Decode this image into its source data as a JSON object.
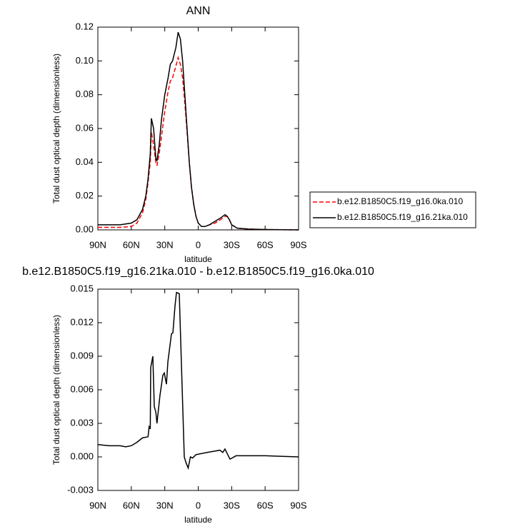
{
  "chart_data": [
    {
      "type": "line",
      "title": "ANN",
      "x_label": "latitude",
      "y_label": "Total dust optical depth (dimensionless)",
      "xlim": [
        90,
        -90
      ],
      "xticks": [
        {
          "value": 90,
          "label": "90N"
        },
        {
          "value": 60,
          "label": "60N"
        },
        {
          "value": 30,
          "label": "30N"
        },
        0,
        {
          "value": -30,
          "label": "30S"
        },
        {
          "value": -60,
          "label": "60S"
        },
        {
          "value": -90,
          "label": "90S"
        }
      ],
      "ylim": [
        0,
        0.12
      ],
      "yticks": [
        {
          "value": 0,
          "label": "0.00"
        },
        0.02,
        0.04,
        0.06,
        0.08,
        {
          "value": 0.1,
          "label": "0.10"
        },
        0.12
      ],
      "legend": "right",
      "x": [
        90,
        80,
        70,
        60,
        55,
        50,
        47,
        45,
        43,
        42,
        40,
        38,
        37,
        35,
        33,
        30,
        27,
        25,
        23,
        20,
        18,
        16,
        14,
        12,
        10,
        8,
        6,
        4,
        2,
        0,
        -3,
        -6,
        -10,
        -15,
        -20,
        -24,
        -26,
        -28,
        -30,
        -35,
        -45,
        -60,
        -90
      ],
      "series": [
        {
          "name": "b.e12.B1850C5.f19_g16.0ka.010",
          "color": "#ff0000",
          "line_style": "dashed",
          "values": [
            0.0015,
            0.0015,
            0.0015,
            0.002,
            0.004,
            0.01,
            0.018,
            0.028,
            0.04,
            0.058,
            0.05,
            0.04,
            0.038,
            0.045,
            0.055,
            0.07,
            0.082,
            0.088,
            0.09,
            0.097,
            0.102,
            0.098,
            0.09,
            0.075,
            0.058,
            0.04,
            0.025,
            0.015,
            0.008,
            0.004,
            0.002,
            0.002,
            0.003,
            0.004,
            0.006,
            0.008,
            0.008,
            0.006,
            0.003,
            0.001,
            0.0005,
            0.0002,
            0
          ]
        },
        {
          "name": "b.e12.B1850C5.f19_g16.21ka.010",
          "color": "#000000",
          "line_style": "solid",
          "values": [
            0.003,
            0.003,
            0.003,
            0.004,
            0.006,
            0.012,
            0.02,
            0.03,
            0.045,
            0.066,
            0.06,
            0.042,
            0.041,
            0.05,
            0.065,
            0.08,
            0.09,
            0.098,
            0.1,
            0.108,
            0.117,
            0.113,
            0.1,
            0.08,
            0.06,
            0.04,
            0.025,
            0.015,
            0.008,
            0.004,
            0.002,
            0.002,
            0.003,
            0.005,
            0.007,
            0.009,
            0.008,
            0.006,
            0.003,
            0.001,
            0.0005,
            0.0002,
            0
          ]
        }
      ]
    },
    {
      "type": "line",
      "title": "b.e12.B1850C5.f19_g16.21ka.010 - b.e12.B1850C5.f19_g16.0ka.010",
      "x_label": "latitude",
      "y_label": "Total dust optical depth (dimensionless)",
      "xlim": [
        90,
        -90
      ],
      "xticks": [
        {
          "value": 90,
          "label": "90N"
        },
        {
          "value": 60,
          "label": "60N"
        },
        {
          "value": 30,
          "label": "30N"
        },
        0,
        {
          "value": -30,
          "label": "30S"
        },
        {
          "value": -60,
          "label": "60S"
        },
        {
          "value": -90,
          "label": "90S"
        }
      ],
      "ylim": [
        -0.003,
        0.015
      ],
      "yticks": [
        -0.003,
        {
          "value": 0,
          "label": "0.000"
        },
        0.003,
        0.006,
        0.009,
        0.012,
        0.015
      ],
      "x": [
        90,
        80,
        75,
        70,
        65,
        60,
        55,
        50,
        45,
        44,
        43,
        42.6,
        40.7,
        39.4,
        38,
        37,
        34.3,
        31.7,
        30.4,
        28.5,
        27.2,
        24,
        22.7,
        20.8,
        19.5,
        17,
        12.5,
        11,
        9,
        7,
        5,
        2,
        -8,
        -14,
        -19.5,
        -22,
        -24,
        -27,
        -28.5,
        -34,
        -60,
        -90
      ],
      "series": [
        {
          "color": "#000000",
          "line_style": "solid",
          "values": [
            0.0011,
            0.001,
            0.001,
            0.001,
            0.0009,
            0.001,
            0.0013,
            0.0017,
            0.0018,
            0.0027,
            0.0025,
            0.008,
            0.009,
            0.0045,
            0.004,
            0.003,
            0.0055,
            0.0073,
            0.0075,
            0.0065,
            0.0085,
            0.011,
            0.0111,
            0.0135,
            0.0147,
            0.0146,
            0,
            -0.0005,
            -0.001,
            0,
            -0.0001,
            0.0002,
            0.0004,
            0.0005,
            0.0006,
            0.0004,
            0.0007,
            0.0001,
            -0.0002,
            0.0001,
            0.0001,
            0
          ]
        }
      ]
    }
  ]
}
